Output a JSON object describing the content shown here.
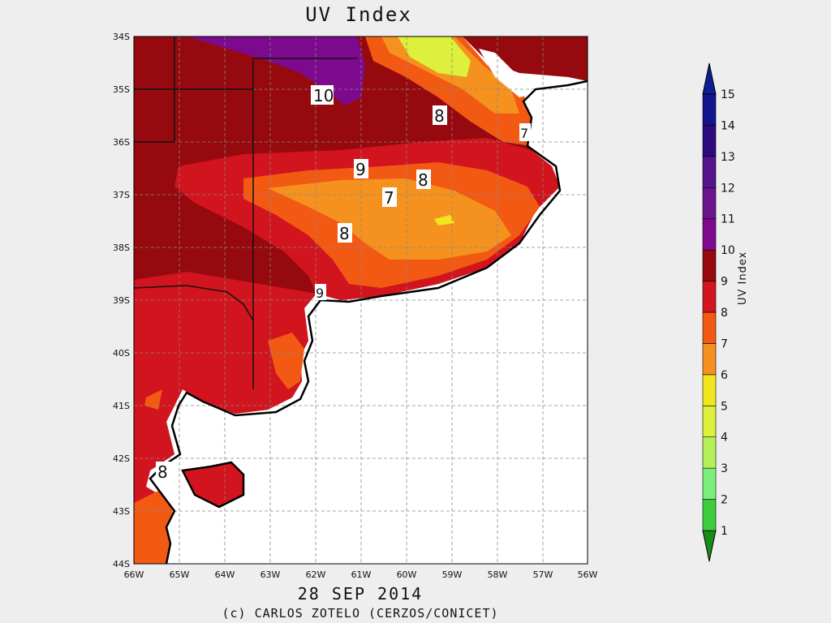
{
  "title": "UV Index",
  "date": "28 SEP 2014",
  "credit": "(c) CARLOS ZOTELO (CERZOS/CONICET)",
  "colorbar": {
    "label": "UV Index",
    "ticks": [
      "1",
      "2",
      "3",
      "4",
      "5",
      "6",
      "7",
      "8",
      "9",
      "10",
      "11",
      "12",
      "13",
      "14",
      "15"
    ],
    "colors": [
      "#1a8a1a",
      "#3ecc3e",
      "#7af07a",
      "#b4f05a",
      "#dcf03c",
      "#f0e61e",
      "#f5911e",
      "#f25a14",
      "#d2141e",
      "#960a0f",
      "#7d0a8c",
      "#69148c",
      "#55148c",
      "#2d0a7d",
      "#14148c",
      "#0a1e96"
    ]
  },
  "axes": {
    "lat_labels": [
      "34S",
      "35S",
      "36S",
      "37S",
      "38S",
      "39S",
      "40S",
      "41S",
      "42S",
      "43S",
      "44S"
    ],
    "lon_labels": [
      "66W",
      "65W",
      "64W",
      "63W",
      "62W",
      "61W",
      "60W",
      "59W",
      "58W",
      "57W",
      "56W"
    ]
  },
  "contour_labels": [
    "10",
    "8",
    "9",
    "8",
    "7",
    "8",
    "9",
    "8",
    "7"
  ]
}
